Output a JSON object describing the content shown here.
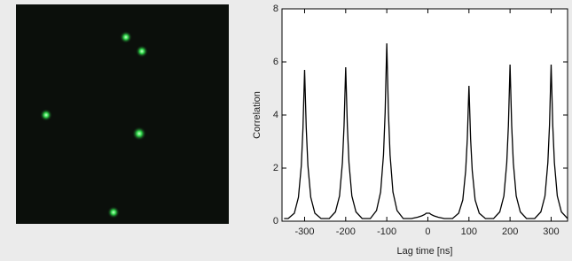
{
  "chart_data": {
    "type": "line",
    "x_label": "Lag time [ns]",
    "y_label": "Correlation",
    "xlim": [
      -355,
      340
    ],
    "ylim": [
      0,
      8
    ],
    "xticks": [
      -300,
      -200,
      -100,
      0,
      100,
      200,
      300
    ],
    "yticks": [
      0,
      2,
      4,
      6,
      8
    ],
    "color": "#000000",
    "x": [
      -350,
      -340,
      -325,
      -315,
      -308,
      -304,
      -300,
      -296,
      -292,
      -285,
      -275,
      -260,
      -250,
      -240,
      -225,
      -215,
      -208,
      -204,
      -200,
      -196,
      -192,
      -185,
      -175,
      -160,
      -150,
      -140,
      -125,
      -115,
      -108,
      -104,
      -100,
      -96,
      -92,
      -85,
      -75,
      -60,
      -50,
      -40,
      -25,
      -15,
      -8,
      -4,
      0,
      4,
      8,
      15,
      25,
      40,
      50,
      60,
      75,
      85,
      92,
      96,
      100,
      104,
      108,
      115,
      125,
      140,
      150,
      160,
      175,
      185,
      192,
      196,
      200,
      204,
      208,
      215,
      225,
      240,
      250,
      260,
      275,
      285,
      292,
      296,
      300,
      304,
      308,
      315,
      325,
      340
    ],
    "values": [
      0.1,
      0.1,
      0.3,
      0.9,
      2.1,
      3.5,
      5.7,
      3.5,
      2.1,
      0.9,
      0.3,
      0.1,
      0.1,
      0.1,
      0.35,
      0.95,
      2.2,
      3.6,
      5.8,
      3.6,
      2.2,
      0.95,
      0.35,
      0.1,
      0.1,
      0.1,
      0.4,
      1.1,
      2.5,
      4.1,
      6.7,
      4.1,
      2.5,
      1.1,
      0.4,
      0.1,
      0.1,
      0.1,
      0.15,
      0.2,
      0.25,
      0.3,
      0.3,
      0.3,
      0.25,
      0.2,
      0.15,
      0.1,
      0.1,
      0.1,
      0.3,
      0.8,
      1.9,
      3.1,
      5.1,
      3.1,
      1.9,
      0.8,
      0.3,
      0.1,
      0.1,
      0.1,
      0.35,
      0.95,
      2.2,
      3.6,
      5.9,
      3.6,
      2.2,
      0.95,
      0.35,
      0.1,
      0.1,
      0.1,
      0.35,
      0.95,
      2.2,
      3.6,
      5.9,
      3.6,
      2.2,
      0.95,
      0.35,
      0.1
    ]
  }
}
